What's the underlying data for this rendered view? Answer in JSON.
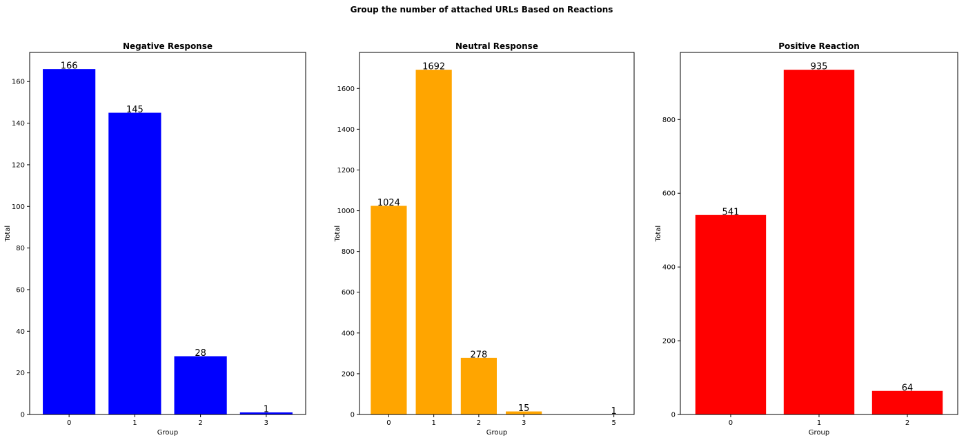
{
  "figure": {
    "suptitle": "Group the number of attached URLs Based on Reactions"
  },
  "chart_data": [
    {
      "type": "bar",
      "title": "Negative Response",
      "xlabel": "Group",
      "ylabel": "Total",
      "color": "#0000ff",
      "x": [
        0,
        1,
        2,
        3
      ],
      "values": [
        166,
        145,
        28,
        1
      ],
      "data_labels": [
        "166",
        "145",
        "28",
        "1"
      ],
      "xlim": [
        -0.6,
        3.6
      ],
      "ylim": [
        0,
        174
      ],
      "xticks": [
        0,
        1,
        2,
        3
      ],
      "yticks": [
        0,
        20,
        40,
        60,
        80,
        100,
        120,
        140,
        160
      ],
      "grid": false
    },
    {
      "type": "bar",
      "title": "Neutral Response",
      "xlabel": "Group",
      "ylabel": "Total",
      "color": "#ffa500",
      "x": [
        0,
        1,
        2,
        3,
        5
      ],
      "values": [
        1024,
        1692,
        278,
        15,
        1
      ],
      "data_labels": [
        "1024",
        "1692",
        "278",
        "15",
        "1"
      ],
      "xlim": [
        -0.65,
        5.45
      ],
      "ylim": [
        0,
        1777
      ],
      "xticks": [
        0,
        1,
        2,
        3,
        5
      ],
      "yticks": [
        0,
        200,
        400,
        600,
        800,
        1000,
        1200,
        1400,
        1600
      ],
      "grid": false
    },
    {
      "type": "bar",
      "title": "Positive Reaction",
      "xlabel": "Group",
      "ylabel": "Total",
      "color": "#ff0000",
      "x": [
        0,
        1,
        2
      ],
      "values": [
        541,
        935,
        64
      ],
      "data_labels": [
        "541",
        "935",
        "64"
      ],
      "xlim": [
        -0.57,
        2.57
      ],
      "ylim": [
        0,
        982
      ],
      "xticks": [
        0,
        1,
        2
      ],
      "yticks": [
        0,
        200,
        400,
        600,
        800
      ],
      "grid": false
    }
  ]
}
